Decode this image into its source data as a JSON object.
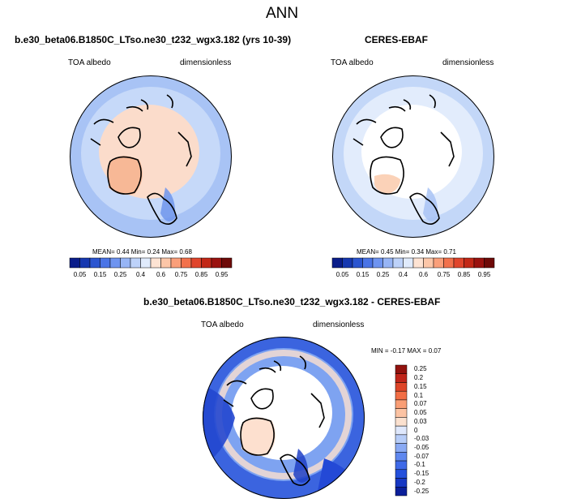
{
  "page_title": "ANN",
  "panels": [
    {
      "title": "b.e30_beta06.B1850C_LTso.ne30_t232_wgx3.182 (yrs 10-39)",
      "left_label": "TOA albedo",
      "right_label": "dimensionless",
      "stats": "MEAN=  0.44  Min=  0.24  Max=  0.68"
    },
    {
      "title": "CERES-EBAF",
      "left_label": "TOA albedo",
      "right_label": "dimensionless",
      "stats": "MEAN=  0.45  Min=  0.34  Max=  0.71"
    },
    {
      "title": "b.e30_beta06.B1850C_LTso.ne30_t232_wgx3.182 - CERES-EBAF",
      "left_label": "TOA albedo",
      "right_label": "dimensionless",
      "stats": "MIN =  -0.17 MAX =  0.07"
    }
  ],
  "colorbar_abs": {
    "colors": [
      "#0a1d8a",
      "#1638b0",
      "#2b55d0",
      "#4a74e6",
      "#6e94f0",
      "#97b5f5",
      "#bdd2f9",
      "#e0ebfc",
      "#fde3d3",
      "#fcc6a8",
      "#fa9f7a",
      "#f2714c",
      "#e0452c",
      "#c22817",
      "#9a120f",
      "#6e0a08"
    ],
    "ticks": [
      "0.05",
      "0.15",
      "0.25",
      "0.4",
      "0.6",
      "0.75",
      "0.85",
      "0.95"
    ]
  },
  "colorbar_diff": {
    "colors": [
      "#0b1f9a",
      "#1738c4",
      "#2450dc",
      "#3f6ae8",
      "#5f88ef",
      "#8aaaf4",
      "#b7cdf8",
      "#dfe8fc",
      "#fbe1cf",
      "#fcc3a3",
      "#f99e75",
      "#f26e45",
      "#de4528",
      "#c0251a",
      "#92120e"
    ],
    "ticks": [
      "0.25",
      "0.2",
      "0.15",
      "0.1",
      "0.07",
      "0.05",
      "0.03",
      "0",
      "-0.03",
      "-0.05",
      "-0.07",
      "-0.1",
      "-0.15",
      "-0.2",
      "-0.25"
    ]
  },
  "chart_data": [
    {
      "type": "heatmap",
      "title": "b.e30_beta06.B1850C_LTso.ne30_t232_wgx3.182 (yrs 10-39)",
      "variable": "TOA albedo",
      "units": "dimensionless",
      "projection": "north polar stereographic",
      "mean": 0.44,
      "min": 0.24,
      "max": 0.68,
      "colorbar_levels": [
        0.05,
        0.15,
        0.25,
        0.4,
        0.6,
        0.75,
        0.85,
        0.95
      ]
    },
    {
      "type": "heatmap",
      "title": "CERES-EBAF",
      "variable": "TOA albedo",
      "units": "dimensionless",
      "projection": "north polar stereographic",
      "mean": 0.45,
      "min": 0.34,
      "max": 0.71,
      "colorbar_levels": [
        0.05,
        0.15,
        0.25,
        0.4,
        0.6,
        0.75,
        0.85,
        0.95
      ]
    },
    {
      "type": "heatmap",
      "title": "b.e30_beta06.B1850C_LTso.ne30_t232_wgx3.182 - CERES-EBAF",
      "variable": "TOA albedo",
      "units": "dimensionless",
      "projection": "north polar stereographic",
      "min": -0.17,
      "max": 0.07,
      "colorbar_levels": [
        0.25,
        0.2,
        0.15,
        0.1,
        0.07,
        0.05,
        0.03,
        0,
        -0.03,
        -0.05,
        -0.07,
        -0.1,
        -0.15,
        -0.2,
        -0.25
      ]
    }
  ]
}
